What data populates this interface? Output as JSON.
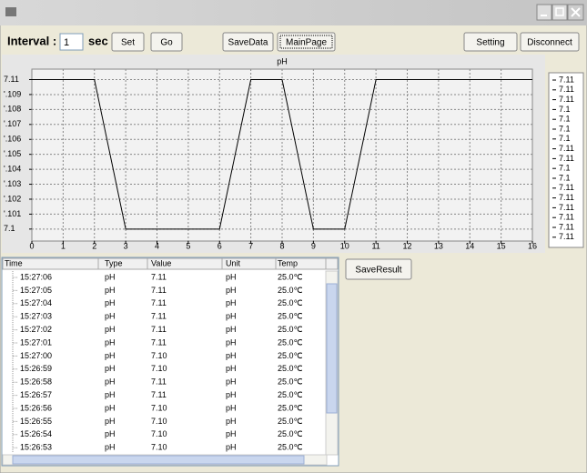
{
  "toolbar": {
    "interval_label": "Interval :",
    "interval_value": "1",
    "interval_unit": "sec",
    "buttons": [
      "Set",
      "Go",
      "SaveData",
      "MainPage",
      "Setting",
      "Disconnect"
    ]
  },
  "chart_data": {
    "type": "line",
    "title": "pH",
    "x": [
      0,
      1,
      2,
      3,
      4,
      5,
      6,
      7,
      8,
      9,
      10,
      11,
      12,
      13,
      14,
      15,
      16
    ],
    "series": [
      {
        "color": "#000000",
        "values": [
          7.11,
          7.11,
          7.11,
          7.1,
          7.1,
          7.1,
          7.1,
          7.11,
          7.11,
          7.1,
          7.1,
          7.11,
          7.11,
          7.11,
          7.11,
          7.11,
          7.11
        ]
      }
    ],
    "xlim": [
      0,
      16
    ],
    "xticks": [
      0,
      1,
      2,
      3,
      4,
      5,
      6,
      7,
      8,
      9,
      10,
      11,
      12,
      13,
      14,
      15,
      16
    ],
    "ylim": [
      7.0992,
      7.1107
    ],
    "yticks": [
      7.11,
      {
        "value": 7.109,
        "label": "'.109"
      },
      {
        "value": 7.108,
        "label": "'.108"
      },
      {
        "value": 7.107,
        "label": "'.107"
      },
      {
        "value": 7.106,
        "label": "'.106"
      },
      {
        "value": 7.105,
        "label": "'.105"
      },
      {
        "value": 7.104,
        "label": "'.104"
      },
      {
        "value": 7.103,
        "label": "'.103"
      },
      {
        "value": 7.102,
        "label": "'.102"
      },
      {
        "value": 7.101,
        "label": "'.101"
      },
      7.1
    ],
    "grid": true
  },
  "value_list": [
    "7.11",
    "7.11",
    "7.11",
    "7.1",
    "7.1",
    "7.1",
    "7.1",
    "7.11",
    "7.11",
    "7.1",
    "7.1",
    "7.11",
    "7.11",
    "7.11",
    "7.11",
    "7.11",
    "7.11"
  ],
  "table": {
    "columns": [
      "Time",
      "Type",
      "Value",
      "Unit",
      "Temp"
    ],
    "rows": [
      [
        "15:27:06",
        "pH",
        "7.11",
        "pH",
        "25.0℃"
      ],
      [
        "15:27:05",
        "pH",
        "7.11",
        "pH",
        "25.0℃"
      ],
      [
        "15:27:04",
        "pH",
        "7.11",
        "pH",
        "25.0℃"
      ],
      [
        "15:27:03",
        "pH",
        "7.11",
        "pH",
        "25.0℃"
      ],
      [
        "15:27:02",
        "pH",
        "7.11",
        "pH",
        "25.0℃"
      ],
      [
        "15:27:01",
        "pH",
        "7.11",
        "pH",
        "25.0℃"
      ],
      [
        "15:27:00",
        "pH",
        "7.10",
        "pH",
        "25.0℃"
      ],
      [
        "15:26:59",
        "pH",
        "7.10",
        "pH",
        "25.0℃"
      ],
      [
        "15:26:58",
        "pH",
        "7.11",
        "pH",
        "25.0℃"
      ],
      [
        "15:26:57",
        "pH",
        "7.11",
        "pH",
        "25.0℃"
      ],
      [
        "15:26:56",
        "pH",
        "7.10",
        "pH",
        "25.0℃"
      ],
      [
        "15:26:55",
        "pH",
        "7.10",
        "pH",
        "25.0℃"
      ],
      [
        "15:26:54",
        "pH",
        "7.10",
        "pH",
        "25.0℃"
      ],
      [
        "15:26:53",
        "pH",
        "7.10",
        "pH",
        "25.0℃"
      ]
    ]
  },
  "save_result": "SaveResult"
}
